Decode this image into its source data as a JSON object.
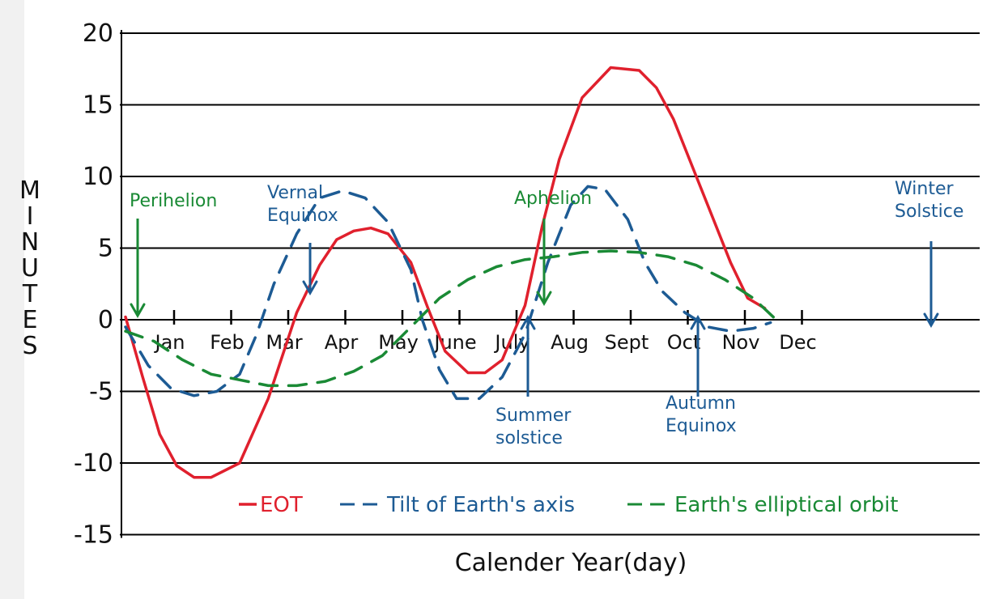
{
  "chart_data": {
    "type": "line",
    "title": "",
    "xlabel": "Calender Year(day)",
    "ylabel": "MINUTES",
    "ylim": [
      -15,
      20
    ],
    "yticks": [
      20,
      15,
      10,
      5,
      0,
      -5,
      -10,
      -15
    ],
    "ytick_labels": [
      "20",
      "15",
      "10",
      "5",
      "0",
      "-5",
      "-10",
      "-15"
    ],
    "categories": [
      "Jan",
      "Feb",
      "Mar",
      "Apr",
      "May",
      "June",
      "July",
      "Aug",
      "Sept",
      "Oct",
      "Nov",
      "Dec"
    ],
    "grid": true,
    "legend_position": "bottom",
    "series": [
      {
        "name": "EOT",
        "style": "solid",
        "color": "#e0202d",
        "x": [
          0.0,
          0.3,
          0.6,
          0.9,
          1.2,
          1.5,
          2.0,
          2.5,
          3.0,
          3.4,
          3.7,
          4.0,
          4.3,
          4.6,
          5.0,
          5.3,
          5.6,
          6.0,
          6.3,
          6.6,
          7.0,
          7.3,
          7.6,
          8.0,
          8.5,
          9.0,
          9.3,
          9.6,
          10.0,
          10.3,
          10.6,
          10.9,
          11.2
        ],
        "y": [
          0.2,
          -4.0,
          -8.0,
          -10.2,
          -11.0,
          -11.0,
          -10.0,
          -5.5,
          0.5,
          3.8,
          5.6,
          6.2,
          6.4,
          6.0,
          4.0,
          0.8,
          -2.2,
          -3.7,
          -3.7,
          -2.8,
          1.0,
          6.5,
          11.2,
          15.5,
          17.6,
          17.4,
          16.2,
          14.0,
          10.0,
          7.0,
          4.0,
          1.5,
          0.8
        ]
      },
      {
        "name": "Tilt of Earth's axis",
        "style": "dashed",
        "color": "#1d5b94",
        "x": [
          0.0,
          0.4,
          0.8,
          1.2,
          1.6,
          2.0,
          2.3,
          2.6,
          3.0,
          3.4,
          3.8,
          4.2,
          4.6,
          5.0,
          5.2,
          5.5,
          5.8,
          6.2,
          6.6,
          7.0,
          7.4,
          7.8,
          8.1,
          8.4,
          8.8,
          9.1,
          9.4,
          9.8,
          10.2,
          10.6,
          11.0,
          11.3
        ],
        "y": [
          -0.5,
          -3.2,
          -4.8,
          -5.3,
          -5.0,
          -3.8,
          -1.0,
          2.5,
          6.0,
          8.5,
          9.0,
          8.5,
          6.8,
          3.5,
          0.0,
          -3.5,
          -5.5,
          -5.5,
          -4.0,
          -1.0,
          4.0,
          8.0,
          9.3,
          9.1,
          7.0,
          4.0,
          2.0,
          0.5,
          -0.5,
          -0.8,
          -0.6,
          -0.2
        ]
      },
      {
        "name": "Earth's elliptical orbit",
        "style": "dashed",
        "color": "#1a8a35",
        "x": [
          0.0,
          0.5,
          1.0,
          1.5,
          2.0,
          2.5,
          3.0,
          3.5,
          4.0,
          4.5,
          5.0,
          5.5,
          6.0,
          6.5,
          7.0,
          7.5,
          8.0,
          8.5,
          9.0,
          9.5,
          10.0,
          10.5,
          11.0,
          11.4
        ],
        "y": [
          -0.8,
          -1.5,
          -2.8,
          -3.8,
          -4.2,
          -4.6,
          -4.6,
          -4.3,
          -3.6,
          -2.5,
          -0.5,
          1.5,
          2.8,
          3.7,
          4.2,
          4.4,
          4.7,
          4.8,
          4.7,
          4.4,
          3.8,
          2.8,
          1.5,
          0.0
        ]
      }
    ],
    "annotations": [
      {
        "label": "Perihelion",
        "color": "#1a8a35"
      },
      {
        "label": "Vernal Equinox",
        "line1": "Vernal",
        "line2": "Equinox",
        "color": "#1d5b94"
      },
      {
        "label": "Aphelion",
        "color": "#1a8a35"
      },
      {
        "label": "Winter Solstice",
        "line1": "Winter",
        "line2": "Solstice",
        "color": "#1d5b94"
      },
      {
        "label": "Summer solstice",
        "line1": "Summer",
        "line2": "solstice",
        "color": "#1d5b94"
      },
      {
        "label": "Autumn Equinox",
        "line1": "Autumn",
        "line2": "Equinox",
        "color": "#1d5b94"
      }
    ]
  }
}
